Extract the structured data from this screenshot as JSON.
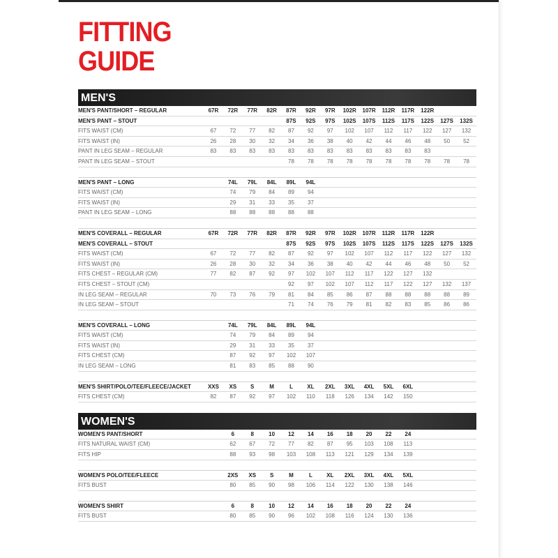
{
  "title": {
    "line1": "FITTING",
    "line2": "GUIDE"
  },
  "colors": {
    "title": "#e31e24",
    "bar": "#222222"
  },
  "sections": [
    {
      "name": "MEN'S",
      "blocks": [
        {
          "rows": [
            {
              "label": "MEN'S PANT/SHORT – REGULAR",
              "bold": true,
              "cells": [
                "67R",
                "72R",
                "77R",
                "82R",
                "87R",
                "92R",
                "97R",
                "102R",
                "107R",
                "112R",
                "117R",
                "122R",
                "",
                ""
              ]
            },
            {
              "label": "MEN'S PANT – STOUT",
              "bold": true,
              "cells": [
                "",
                "",
                "",
                "",
                "87S",
                "92S",
                "97S",
                "102S",
                "107S",
                "112S",
                "117S",
                "122S",
                "127S",
                "132S"
              ]
            },
            {
              "label": "FITS WAIST (CM)",
              "cells": [
                "67",
                "72",
                "77",
                "82",
                "87",
                "92",
                "97",
                "102",
                "107",
                "112",
                "117",
                "122",
                "127",
                "132"
              ]
            },
            {
              "label": "FITS WAIST (IN)",
              "cells": [
                "26",
                "28",
                "30",
                "32",
                "34",
                "36",
                "38",
                "40",
                "42",
                "44",
                "46",
                "48",
                "50",
                "52"
              ]
            },
            {
              "label": "PANT IN LEG SEAM – REGULAR",
              "cells": [
                "83",
                "83",
                "83",
                "83",
                "83",
                "83",
                "83",
                "83",
                "83",
                "83",
                "83",
                "83",
                "",
                ""
              ]
            },
            {
              "label": "PANT IN LEG SEAM – STOUT",
              "cells": [
                "",
                "",
                "",
                "",
                "78",
                "78",
                "78",
                "78",
                "78",
                "78",
                "78",
                "78",
                "78",
                "78"
              ]
            }
          ]
        },
        {
          "rows": [
            {
              "label": "MEN'S PANT – LONG",
              "bold": true,
              "cells": [
                "",
                "74L",
                "79L",
                "84L",
                "89L",
                "94L",
                "",
                "",
                "",
                "",
                "",
                "",
                "",
                ""
              ]
            },
            {
              "label": "FITS WAIST (CM)",
              "cells": [
                "",
                "74",
                "79",
                "84",
                "89",
                "94",
                "",
                "",
                "",
                "",
                "",
                "",
                "",
                ""
              ]
            },
            {
              "label": "FITS WAIST (IN)",
              "cells": [
                "",
                "29",
                "31",
                "33",
                "35",
                "37",
                "",
                "",
                "",
                "",
                "",
                "",
                "",
                ""
              ]
            },
            {
              "label": "PANT IN LEG SEAM – LONG",
              "cells": [
                "",
                "88",
                "88",
                "88",
                "88",
                "88",
                "",
                "",
                "",
                "",
                "",
                "",
                "",
                ""
              ]
            }
          ]
        },
        {
          "rows": [
            {
              "label": "MEN'S COVERALL – REGULAR",
              "bold": true,
              "cells": [
                "67R",
                "72R",
                "77R",
                "82R",
                "87R",
                "92R",
                "97R",
                "102R",
                "107R",
                "112R",
                "117R",
                "122R",
                "",
                ""
              ]
            },
            {
              "label": "MEN'S COVERALL – STOUT",
              "bold": true,
              "cells": [
                "",
                "",
                "",
                "",
                "87S",
                "92S",
                "97S",
                "102S",
                "107S",
                "112S",
                "117S",
                "122S",
                "127S",
                "132S"
              ]
            },
            {
              "label": "FITS WAIST (CM)",
              "cells": [
                "67",
                "72",
                "77",
                "82",
                "87",
                "92",
                "97",
                "102",
                "107",
                "112",
                "117",
                "122",
                "127",
                "132"
              ]
            },
            {
              "label": "FITS WAIST (IN)",
              "cells": [
                "26",
                "28",
                "30",
                "32",
                "34",
                "36",
                "38",
                "40",
                "42",
                "44",
                "46",
                "48",
                "50",
                "52"
              ]
            },
            {
              "label": "FITS CHEST – REGULAR (CM)",
              "cells": [
                "77",
                "82",
                "87",
                "92",
                "97",
                "102",
                "107",
                "112",
                "117",
                "122",
                "127",
                "132",
                "",
                ""
              ]
            },
            {
              "label": "FITS CHEST – STOUT (CM)",
              "cells": [
                "",
                "",
                "",
                "",
                "92",
                "97",
                "102",
                "107",
                "112",
                "117",
                "122",
                "127",
                "132",
                "137"
              ]
            },
            {
              "label": "IN LEG SEAM – REGULAR",
              "cells": [
                "70",
                "73",
                "76",
                "79",
                "81",
                "84",
                "85",
                "86",
                "87",
                "88",
                "88",
                "88",
                "88",
                "89"
              ]
            },
            {
              "label": "IN LEG SEAM – STOUT",
              "cells": [
                "",
                "",
                "",
                "",
                "71",
                "74",
                "76",
                "79",
                "81",
                "82",
                "83",
                "85",
                "86",
                "86"
              ]
            }
          ]
        },
        {
          "rows": [
            {
              "label": "MEN'S COVERALL – LONG",
              "bold": true,
              "cells": [
                "",
                "74L",
                "79L",
                "84L",
                "89L",
                "94L",
                "",
                "",
                "",
                "",
                "",
                "",
                "",
                ""
              ]
            },
            {
              "label": "FITS WAIST (CM)",
              "cells": [
                "",
                "74",
                "79",
                "84",
                "89",
                "94",
                "",
                "",
                "",
                "",
                "",
                "",
                "",
                ""
              ]
            },
            {
              "label": "FITS WAIST (IN)",
              "cells": [
                "",
                "29",
                "31",
                "33",
                "35",
                "37",
                "",
                "",
                "",
                "",
                "",
                "",
                "",
                ""
              ]
            },
            {
              "label": "FITS CHEST (CM)",
              "cells": [
                "",
                "87",
                "92",
                "97",
                "102",
                "107",
                "",
                "",
                "",
                "",
                "",
                "",
                "",
                ""
              ]
            },
            {
              "label": "IN LEG SEAM – LONG",
              "cells": [
                "",
                "81",
                "83",
                "85",
                "88",
                "90",
                "",
                "",
                "",
                "",
                "",
                "",
                "",
                ""
              ]
            }
          ]
        },
        {
          "rows": [
            {
              "label": "MEN'S SHIRT/POLO/TEE/FLEECE/JACKET",
              "bold": true,
              "cells": [
                "XXS",
                "XS",
                "S",
                "M",
                "L",
                "XL",
                "2XL",
                "3XL",
                "4XL",
                "5XL",
                "6XL",
                "",
                "",
                ""
              ]
            },
            {
              "label": "FITS CHEST (CM)",
              "cells": [
                "82",
                "87",
                "92",
                "97",
                "102",
                "110",
                "118",
                "126",
                "134",
                "142",
                "150",
                "",
                "",
                ""
              ]
            }
          ]
        }
      ]
    },
    {
      "name": "WOMEN'S",
      "blocks": [
        {
          "rows": [
            {
              "label": "WOMEN'S PANT/SHORT",
              "bold": true,
              "cells": [
                "",
                "6",
                "8",
                "10",
                "12",
                "14",
                "16",
                "18",
                "20",
                "22",
                "24",
                "",
                "",
                ""
              ]
            },
            {
              "label": "FITS NATURAL WAIST (CM)",
              "cells": [
                "",
                "62",
                "67",
                "72",
                "77",
                "82",
                "87",
                "95",
                "103",
                "108",
                "113",
                "",
                "",
                ""
              ]
            },
            {
              "label": "FITS HIP",
              "cells": [
                "",
                "88",
                "93",
                "98",
                "103",
                "108",
                "113",
                "121",
                "129",
                "134",
                "139",
                "",
                "",
                ""
              ]
            }
          ]
        },
        {
          "rows": [
            {
              "label": "WOMEN'S POLO/TEE/FLEECE",
              "bold": true,
              "cells": [
                "",
                "2XS",
                "XS",
                "S",
                "M",
                "L",
                "XL",
                "2XL",
                "3XL",
                "4XL",
                "5XL",
                "",
                "",
                ""
              ]
            },
            {
              "label": "FITS BUST",
              "cells": [
                "",
                "80",
                "85",
                "90",
                "98",
                "106",
                "114",
                "122",
                "130",
                "138",
                "146",
                "",
                "",
                ""
              ]
            }
          ]
        },
        {
          "rows": [
            {
              "label": "WOMEN'S SHIRT",
              "bold": true,
              "cells": [
                "",
                "6",
                "8",
                "10",
                "12",
                "14",
                "16",
                "18",
                "20",
                "22",
                "24",
                "",
                "",
                ""
              ]
            },
            {
              "label": "FITS BUST",
              "cells": [
                "",
                "80",
                "85",
                "90",
                "96",
                "102",
                "108",
                "116",
                "124",
                "130",
                "136",
                "",
                "",
                ""
              ]
            }
          ]
        }
      ]
    }
  ]
}
